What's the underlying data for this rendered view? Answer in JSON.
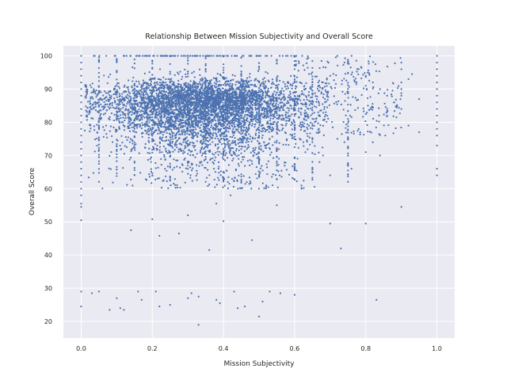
{
  "chart_data": {
    "type": "scatter",
    "title": "Relationship Between Mission Subjectivity and Overall Score",
    "xlabel": "Mission Subjectivity",
    "ylabel": "Overall Score",
    "xlim": [
      -0.05,
      1.05
    ],
    "ylim": [
      15,
      103
    ],
    "xticks": [
      "0.0",
      "0.2",
      "0.4",
      "0.6",
      "0.8",
      "1.0"
    ],
    "yticks": [
      "20",
      "30",
      "40",
      "50",
      "60",
      "70",
      "80",
      "90",
      "100"
    ],
    "grid": true,
    "marker_color": "#4c72b0",
    "background_color": "#eaeaf2",
    "series": [
      {
        "points": [
          [
            0.0,
            100
          ],
          [
            0.0,
            98
          ],
          [
            0.0,
            96
          ],
          [
            0.0,
            94
          ],
          [
            0.0,
            92
          ],
          [
            0.0,
            90
          ],
          [
            0.0,
            88
          ],
          [
            0.0,
            86
          ],
          [
            0.0,
            84
          ],
          [
            0.0,
            82
          ],
          [
            0.0,
            80
          ],
          [
            0.0,
            78
          ],
          [
            0.0,
            76
          ],
          [
            0.0,
            74
          ],
          [
            0.0,
            72
          ],
          [
            0.0,
            70
          ],
          [
            0.0,
            68
          ],
          [
            0.0,
            66
          ],
          [
            0.0,
            64
          ],
          [
            0.0,
            62
          ],
          [
            0.0,
            60
          ],
          [
            0.0,
            58
          ],
          [
            0.0,
            55.5
          ],
          [
            0.0,
            54.5
          ],
          [
            0.0,
            50.5
          ],
          [
            0.0,
            29
          ],
          [
            0.0,
            24.5
          ],
          [
            0.5,
            100
          ],
          [
            0.5,
            96
          ],
          [
            0.5,
            92
          ],
          [
            0.5,
            88
          ],
          [
            0.5,
            84
          ],
          [
            0.5,
            80
          ],
          [
            0.5,
            76
          ],
          [
            0.5,
            72
          ],
          [
            0.5,
            68
          ],
          [
            0.5,
            64
          ],
          [
            0.5,
            60
          ],
          [
            0.6,
            96
          ],
          [
            0.6,
            92
          ],
          [
            0.6,
            88
          ],
          [
            0.6,
            84
          ],
          [
            0.6,
            80
          ],
          [
            0.6,
            28
          ],
          [
            0.9,
            98
          ],
          [
            0.9,
            96
          ],
          [
            0.9,
            92
          ],
          [
            0.9,
            90
          ],
          [
            0.9,
            88
          ],
          [
            0.9,
            84
          ],
          [
            0.9,
            54.5
          ],
          [
            1.0,
            100
          ],
          [
            1.0,
            98
          ],
          [
            1.0,
            96
          ],
          [
            1.0,
            94
          ],
          [
            1.0,
            92
          ],
          [
            1.0,
            90
          ],
          [
            1.0,
            88
          ],
          [
            1.0,
            86
          ],
          [
            1.0,
            84
          ],
          [
            1.0,
            82
          ],
          [
            1.0,
            80
          ],
          [
            1.0,
            78
          ],
          [
            1.0,
            76
          ],
          [
            1.0,
            73
          ],
          [
            1.0,
            66
          ],
          [
            1.0,
            64
          ],
          [
            0.14,
            47.5
          ],
          [
            0.22,
            45.8
          ],
          [
            0.275,
            46.5
          ],
          [
            0.36,
            41.5
          ],
          [
            0.48,
            44.5
          ],
          [
            0.4,
            50.2
          ],
          [
            0.38,
            55.5
          ],
          [
            0.42,
            58
          ],
          [
            0.2,
            50.8
          ],
          [
            0.3,
            52
          ],
          [
            0.55,
            55
          ],
          [
            0.62,
            60
          ],
          [
            0.7,
            49.5
          ],
          [
            0.73,
            42
          ],
          [
            0.8,
            49.5
          ],
          [
            0.83,
            26.5
          ],
          [
            0.03,
            28.5
          ],
          [
            0.05,
            29
          ],
          [
            0.08,
            23.5
          ],
          [
            0.1,
            27
          ],
          [
            0.11,
            24
          ],
          [
            0.12,
            23.5
          ],
          [
            0.16,
            29
          ],
          [
            0.17,
            26.5
          ],
          [
            0.21,
            29
          ],
          [
            0.22,
            24.5
          ],
          [
            0.25,
            25
          ],
          [
            0.3,
            27
          ],
          [
            0.31,
            28.5
          ],
          [
            0.33,
            27.5
          ],
          [
            0.33,
            19
          ],
          [
            0.38,
            26.5
          ],
          [
            0.39,
            25.5
          ],
          [
            0.43,
            29
          ],
          [
            0.44,
            24
          ],
          [
            0.46,
            24.5
          ],
          [
            0.5,
            21.5
          ],
          [
            0.51,
            26
          ],
          [
            0.53,
            29
          ],
          [
            0.56,
            28.5
          ],
          [
            0.65,
            66
          ],
          [
            0.67,
            68
          ],
          [
            0.68,
            70
          ],
          [
            0.7,
            64
          ],
          [
            0.72,
            75
          ],
          [
            0.74,
            74
          ],
          [
            0.76,
            66
          ],
          [
            0.78,
            78
          ],
          [
            0.8,
            71
          ],
          [
            0.82,
            74
          ],
          [
            0.84,
            70
          ],
          [
            0.86,
            82
          ],
          [
            0.88,
            86
          ],
          [
            0.92,
            79
          ],
          [
            0.95,
            77
          ],
          [
            0.92,
            93
          ],
          [
            0.93,
            94.5
          ],
          [
            0.95,
            87
          ],
          [
            0.76,
            100
          ],
          [
            0.78,
            96
          ],
          [
            0.8,
            94
          ],
          [
            0.82,
            92
          ],
          [
            0.84,
            90
          ],
          [
            0.86,
            88
          ],
          [
            0.72,
            100
          ],
          [
            0.74,
            98
          ],
          [
            0.7,
            94
          ]
        ]
      }
    ]
  }
}
